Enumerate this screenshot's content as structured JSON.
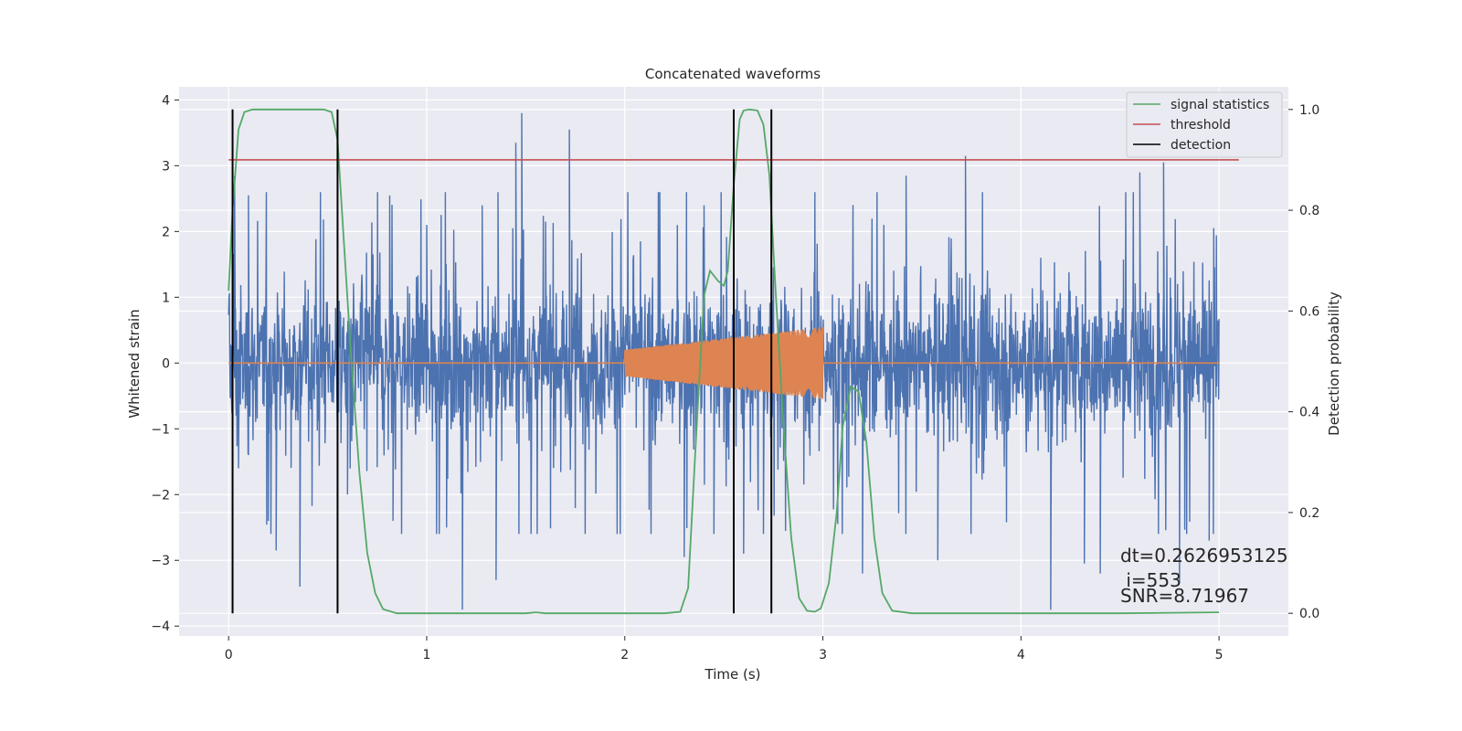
{
  "chart_data": {
    "type": "line",
    "title": "Concatenated waveforms",
    "xlabel": "Time (s)",
    "ylabel": "Whitened strain",
    "y2label": "Detection probability",
    "xlim": [
      -0.25,
      5.35
    ],
    "ylim": [
      -4.15,
      4.2
    ],
    "y2lim": [
      -0.045,
      1.045
    ],
    "x_ticks": [
      0,
      1,
      2,
      3,
      4,
      5
    ],
    "y_ticks": [
      -4,
      -3,
      -2,
      -1,
      0,
      1,
      2,
      3,
      4
    ],
    "y2_ticks": [
      0.0,
      0.2,
      0.4,
      0.6,
      0.8,
      1.0
    ],
    "x_tick_labels": [
      "0",
      "1",
      "2",
      "3",
      "4",
      "5"
    ],
    "y_tick_labels": [
      "−4",
      "−3",
      "−2",
      "−1",
      "0",
      "1",
      "2",
      "3",
      "4"
    ],
    "y2_tick_labels": [
      "0.0",
      "0.2",
      "0.4",
      "0.6",
      "0.8",
      "1.0"
    ],
    "grid": true,
    "legend_position": "top-right",
    "colors": {
      "background": "#eaeaf2",
      "grid": "#ffffff",
      "strain": "#4c72b0",
      "injection": "#dd8452",
      "signal_statistics": "#55a868",
      "threshold": "#c44e52",
      "detection": "#000000"
    },
    "series": [
      {
        "key": "strain",
        "axis": "left",
        "note": "whitened noise, approx. amplitude band ±0.75 with spikes",
        "x_range": [
          0,
          5
        ],
        "spikes": [
          [
            0.03,
            2.85
          ],
          [
            0.05,
            -1.6
          ],
          [
            0.1,
            2.55
          ],
          [
            0.2,
            -2.4
          ],
          [
            0.24,
            -2.85
          ],
          [
            0.36,
            -3.4
          ],
          [
            0.6,
            -2.0
          ],
          [
            0.83,
            -2.4
          ],
          [
            1.0,
            2.1
          ],
          [
            1.1,
            -2.5
          ],
          [
            1.18,
            -3.75
          ],
          [
            1.28,
            2.4
          ],
          [
            1.35,
            -3.3
          ],
          [
            1.36,
            2.6
          ],
          [
            1.45,
            3.35
          ],
          [
            1.48,
            3.8
          ],
          [
            1.6,
            2.15
          ],
          [
            1.72,
            3.55
          ],
          [
            1.8,
            -2.2
          ],
          [
            2.3,
            -2.95
          ],
          [
            2.4,
            2.4
          ],
          [
            2.45,
            -2.6
          ],
          [
            2.6,
            -2.9
          ],
          [
            2.7,
            -2.6
          ],
          [
            3.2,
            -3.2
          ],
          [
            3.42,
            2.85
          ],
          [
            3.58,
            -3.0
          ],
          [
            3.72,
            3.15
          ],
          [
            4.15,
            -3.75
          ],
          [
            4.32,
            -3.05
          ],
          [
            4.4,
            -3.2
          ],
          [
            4.6,
            2.9
          ],
          [
            4.72,
            3.05
          ],
          [
            4.8,
            -3.35
          ],
          [
            4.95,
            -2.7
          ]
        ]
      },
      {
        "key": "injection",
        "axis": "left",
        "note": "chirp injection with growing amplitude",
        "x_range": [
          0,
          5
        ],
        "chirp_start": 2.0,
        "chirp_end": 3.0,
        "start_amplitude": 0.2,
        "end_amplitude": 0.55
      },
      {
        "key": "signal_statistics",
        "name": "signal statistics",
        "axis": "right",
        "x": [
          0.0,
          0.02,
          0.05,
          0.08,
          0.12,
          0.2,
          0.3,
          0.4,
          0.48,
          0.52,
          0.55,
          0.58,
          0.62,
          0.66,
          0.7,
          0.74,
          0.78,
          0.85,
          1.0,
          1.5,
          1.55,
          1.6,
          2.0,
          2.2,
          2.28,
          2.32,
          2.36,
          2.4,
          2.43,
          2.47,
          2.5,
          2.52,
          2.55,
          2.58,
          2.6,
          2.63,
          2.67,
          2.7,
          2.73,
          2.76,
          2.8,
          2.84,
          2.88,
          2.92,
          2.96,
          2.99,
          3.03,
          3.07,
          3.1,
          3.14,
          3.18,
          3.22,
          3.26,
          3.3,
          3.35,
          3.45,
          4.0,
          4.5,
          5.0
        ],
        "y": [
          0.64,
          0.8,
          0.96,
          0.995,
          1.0,
          1.0,
          1.0,
          1.0,
          1.0,
          0.995,
          0.94,
          0.75,
          0.5,
          0.28,
          0.12,
          0.04,
          0.008,
          0.0,
          0.0,
          0.0,
          0.002,
          0.0,
          0.0,
          0.0,
          0.003,
          0.05,
          0.35,
          0.63,
          0.68,
          0.66,
          0.65,
          0.68,
          0.85,
          0.98,
          0.998,
          1.0,
          0.998,
          0.97,
          0.87,
          0.65,
          0.38,
          0.15,
          0.03,
          0.005,
          0.003,
          0.01,
          0.06,
          0.2,
          0.37,
          0.45,
          0.44,
          0.34,
          0.15,
          0.04,
          0.005,
          0.0,
          0.0,
          0.0,
          0.002
        ]
      },
      {
        "key": "threshold",
        "name": "threshold",
        "axis": "right",
        "x": [
          0.0,
          5.1
        ],
        "y": [
          0.9,
          0.9
        ]
      },
      {
        "key": "detection",
        "name": "detection",
        "axis": "right",
        "x_positions": [
          0.02,
          0.55,
          2.55,
          2.74
        ],
        "y_range": [
          0.0,
          1.0
        ]
      }
    ],
    "legend": [
      {
        "key": "signal_statistics",
        "label": "signal statistics"
      },
      {
        "key": "threshold",
        "label": "threshold"
      },
      {
        "key": "detection",
        "label": "detection"
      }
    ],
    "annotations": {
      "dt": "dt=0.2626953125",
      "i": " i=553",
      "snr": "SNR=8.71967"
    }
  }
}
